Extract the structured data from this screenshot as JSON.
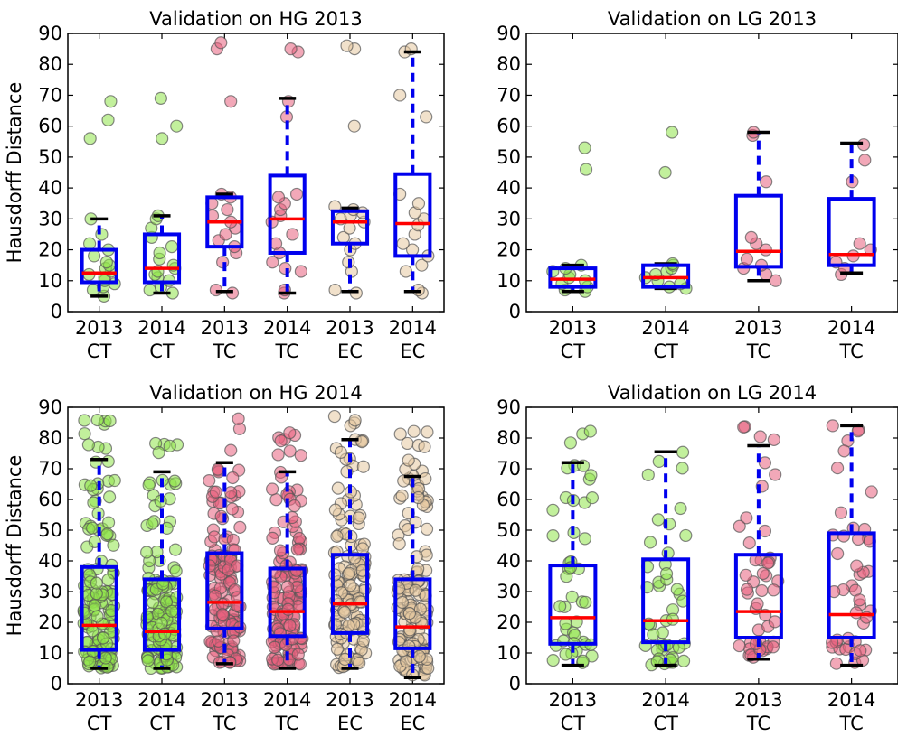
{
  "chart_data": [
    {
      "type": "box",
      "title": "Validation on HG 2013",
      "ylabel": "Hausdorff Distance",
      "ylim": [
        0,
        90
      ],
      "yticks": [
        0,
        10,
        20,
        30,
        40,
        50,
        60,
        70,
        80,
        90
      ],
      "categories": [
        {
          "year": "2013",
          "region": "CT"
        },
        {
          "year": "2014",
          "region": "CT"
        },
        {
          "year": "2013",
          "region": "TC"
        },
        {
          "year": "2014",
          "region": "TC"
        },
        {
          "year": "2013",
          "region": "EC"
        },
        {
          "year": "2014",
          "region": "EC"
        }
      ],
      "boxes": [
        {
          "whisker_low": 5,
          "q1": 9.5,
          "median": 12.5,
          "q3": 20,
          "whisker_high": 30,
          "points": [
            5,
            7,
            8,
            9,
            10,
            11,
            12,
            13,
            14,
            15,
            16,
            18,
            20,
            22,
            25,
            30,
            56,
            62,
            68
          ],
          "color": "#8fe34a"
        },
        {
          "whisker_low": 6,
          "q1": 9.5,
          "median": 14,
          "q3": 25,
          "whisker_high": 31,
          "points": [
            6,
            7,
            8,
            10,
            11,
            12,
            13,
            14,
            15,
            17,
            19,
            21,
            24,
            27,
            30,
            31,
            56,
            60,
            69
          ],
          "color": "#8fe34a"
        },
        {
          "whisker_low": 6.5,
          "q1": 21,
          "median": 29,
          "q3": 37,
          "whisker_high": 38,
          "points": [
            6,
            7,
            16,
            19,
            21,
            23,
            25,
            27,
            29,
            31,
            33,
            35,
            37,
            38,
            68,
            85,
            87
          ],
          "color": "#e8607e"
        },
        {
          "whisker_low": 6,
          "q1": 19,
          "median": 30,
          "q3": 44,
          "whisker_high": 69,
          "points": [
            6,
            7,
            13,
            14,
            16,
            19,
            22,
            25,
            29,
            31,
            33,
            35,
            37,
            38,
            63,
            68,
            84,
            85
          ],
          "color": "#e8607e"
        },
        {
          "whisker_low": 6.5,
          "q1": 22,
          "median": 29,
          "q3": 32.5,
          "whisker_high": 33.5,
          "points": [
            6,
            7,
            13,
            16,
            20,
            22,
            24,
            27,
            29,
            30,
            31,
            32,
            33,
            34,
            60,
            85,
            86
          ],
          "color": "#e6c8a0"
        },
        {
          "whisker_low": 6.5,
          "q1": 18,
          "median": 28.5,
          "q3": 44.5,
          "whisker_high": 84,
          "points": [
            6,
            7,
            13,
            15,
            18,
            20,
            22,
            25,
            28,
            30,
            32,
            35,
            38,
            63,
            70,
            84,
            85
          ],
          "color": "#e6c8a0"
        }
      ]
    },
    {
      "type": "box",
      "title": "Validation on LG 2013",
      "ylabel": "",
      "ylim": [
        0,
        90
      ],
      "yticks": [
        0,
        10,
        20,
        30,
        40,
        50,
        60,
        70,
        80,
        90
      ],
      "categories": [
        {
          "year": "2013",
          "region": "CT"
        },
        {
          "year": "2014",
          "region": "CT"
        },
        {
          "year": "2013",
          "region": "TC"
        },
        {
          "year": "2014",
          "region": "TC"
        }
      ],
      "boxes": [
        {
          "whisker_low": 6.5,
          "q1": 8,
          "median": 10.5,
          "q3": 14,
          "whisker_high": 15,
          "points": [
            6.5,
            7,
            8,
            9,
            10,
            11,
            12,
            13,
            14,
            15,
            46,
            53
          ],
          "color": "#8fe34a"
        },
        {
          "whisker_low": 7.5,
          "q1": 8,
          "median": 11,
          "q3": 15,
          "whisker_high": 15.5,
          "points": [
            7.5,
            8,
            9,
            10,
            11,
            12,
            13,
            14,
            15,
            15.5,
            45,
            58
          ],
          "color": "#8fe34a"
        },
        {
          "whisker_low": 10,
          "q1": 14.5,
          "median": 19.5,
          "q3": 37.5,
          "whisker_high": 58,
          "points": [
            10,
            12,
            14,
            15,
            17,
            20,
            22,
            24,
            42,
            57,
            58
          ],
          "color": "#e8607e"
        },
        {
          "whisker_low": 12.5,
          "q1": 15,
          "median": 18.5,
          "q3": 36.5,
          "whisker_high": 54.5,
          "points": [
            12,
            14,
            16,
            18,
            20,
            22,
            42,
            49,
            54
          ],
          "color": "#e8607e"
        }
      ]
    },
    {
      "type": "box",
      "title": "Validation on HG 2014",
      "ylabel": "Hausdorff Distance",
      "ylim": [
        0,
        90
      ],
      "yticks": [
        0,
        10,
        20,
        30,
        40,
        50,
        60,
        70,
        80,
        90
      ],
      "categories": [
        {
          "year": "2013",
          "region": "CT"
        },
        {
          "year": "2014",
          "region": "CT"
        },
        {
          "year": "2013",
          "region": "TC"
        },
        {
          "year": "2014",
          "region": "TC"
        },
        {
          "year": "2013",
          "region": "EC"
        },
        {
          "year": "2014",
          "region": "EC"
        }
      ],
      "boxes": [
        {
          "whisker_low": 5,
          "q1": 11,
          "median": 19,
          "q3": 38,
          "whisker_high": 73,
          "dense": true,
          "point_max": 89,
          "color": "#8fe34a"
        },
        {
          "whisker_low": 5,
          "q1": 11,
          "median": 17,
          "q3": 34,
          "whisker_high": 69,
          "dense": true,
          "point_max": 79,
          "color": "#8fe34a"
        },
        {
          "whisker_low": 6.5,
          "q1": 18,
          "median": 26.5,
          "q3": 42.5,
          "whisker_high": 72,
          "dense": true,
          "point_max": 87,
          "color": "#e8607e"
        },
        {
          "whisker_low": 5,
          "q1": 15.5,
          "median": 23.5,
          "q3": 37.5,
          "whisker_high": 69,
          "dense": true,
          "point_max": 85,
          "color": "#e8607e"
        },
        {
          "whisker_low": 5,
          "q1": 16.5,
          "median": 26,
          "q3": 42,
          "whisker_high": 79.5,
          "dense": true,
          "point_max": 88,
          "color": "#e6c8a0"
        },
        {
          "whisker_low": 2,
          "q1": 11.5,
          "median": 18.5,
          "q3": 34,
          "whisker_high": 67.5,
          "dense": true,
          "point_max": 88,
          "color": "#e6c8a0"
        }
      ]
    },
    {
      "type": "box",
      "title": "Validation on LG 2014",
      "ylabel": "",
      "ylim": [
        0,
        90
      ],
      "yticks": [
        0,
        10,
        20,
        30,
        40,
        50,
        60,
        70,
        80,
        90
      ],
      "categories": [
        {
          "year": "2013",
          "region": "CT"
        },
        {
          "year": "2014",
          "region": "CT"
        },
        {
          "year": "2013",
          "region": "TC"
        },
        {
          "year": "2014",
          "region": "TC"
        }
      ],
      "boxes": [
        {
          "whisker_low": 6,
          "q1": 13,
          "median": 21.5,
          "q3": 38.5,
          "whisker_high": 72,
          "dense": true,
          "point_max": 84,
          "color": "#8fe34a"
        },
        {
          "whisker_low": 6,
          "q1": 13.5,
          "median": 20.5,
          "q3": 40.5,
          "whisker_high": 75.5,
          "dense": true,
          "point_max": 84,
          "color": "#8fe34a"
        },
        {
          "whisker_low": 8,
          "q1": 15,
          "median": 23.5,
          "q3": 42,
          "whisker_high": 77.5,
          "dense": true,
          "point_max": 84,
          "color": "#e8607e"
        },
        {
          "whisker_low": 6,
          "q1": 15,
          "median": 22.5,
          "q3": 49,
          "whisker_high": 84,
          "dense": true,
          "point_max": 84,
          "color": "#e8607e"
        }
      ]
    }
  ],
  "style": {
    "box_color": "#0000ee",
    "median_color": "#ff0000",
    "whisker_cap_color": "#000000",
    "point_stroke_color": "#555555"
  }
}
